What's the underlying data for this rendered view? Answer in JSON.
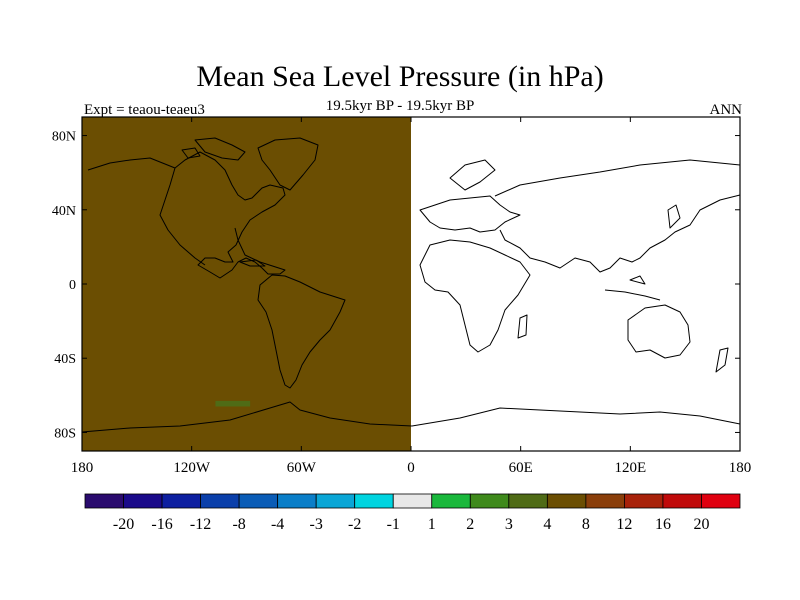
{
  "title": "Mean Sea Level Pressure (in hPa)",
  "subtitle": "19.5kyr BP - 19.5kyr BP",
  "experiment_label": "Expt = teaou-teaeu3",
  "season_label": "ANN",
  "chart_data": {
    "type": "heatmap",
    "projection": "cylindrical equidistant",
    "x_axis": {
      "range": [
        -180,
        180
      ],
      "ticks": [
        {
          "value": -180,
          "label": "180"
        },
        {
          "value": -120,
          "label": "120W"
        },
        {
          "value": -60,
          "label": "60W"
        },
        {
          "value": 0,
          "label": "0"
        },
        {
          "value": 60,
          "label": "60E"
        },
        {
          "value": 120,
          "label": "120E"
        },
        {
          "value": 180,
          "label": "180"
        }
      ]
    },
    "y_axis": {
      "range": [
        -90,
        90
      ],
      "ticks": [
        {
          "value": 80,
          "label": "80N"
        },
        {
          "value": 40,
          "label": "40N"
        },
        {
          "value": 0,
          "label": "0"
        },
        {
          "value": -40,
          "label": "40S"
        },
        {
          "value": -80,
          "label": "80S"
        }
      ]
    },
    "fields": [
      {
        "region": "western hemisphere",
        "lon_range": [
          -180,
          0
        ],
        "lat_range": [
          -90,
          90
        ],
        "value_bin": "4 to 8",
        "color": "#6b4e02"
      },
      {
        "region": "eastern hemisphere",
        "lon_range": [
          0,
          180
        ],
        "lat_range": [
          -90,
          90
        ],
        "value_bin": "-1 to 1",
        "color": "#ffffff"
      },
      {
        "region": "small patch off Antarctica",
        "lon_range": [
          -107,
          -88
        ],
        "lat_range": [
          -66,
          -63
        ],
        "value_bin": "3 to 4",
        "color": "#4f6b16"
      }
    ],
    "colorbar": {
      "levels": [
        "-20",
        "-16",
        "-12",
        "-8",
        "-4",
        "-3",
        "-2",
        "-1",
        "1",
        "2",
        "3",
        "4",
        "8",
        "12",
        "16",
        "20"
      ],
      "colors": [
        "#2a0b6e",
        "#1a0a8a",
        "#0d1fa0",
        "#0a3faa",
        "#0a5cb6",
        "#0a7ec8",
        "#0aa6d6",
        "#00d4e0",
        "#e8e8e8",
        "#1ab83c",
        "#3f8a1c",
        "#4f6b16",
        "#6b4e02",
        "#8a3e0a",
        "#a8220a",
        "#c00a0a",
        "#e00010"
      ]
    }
  }
}
